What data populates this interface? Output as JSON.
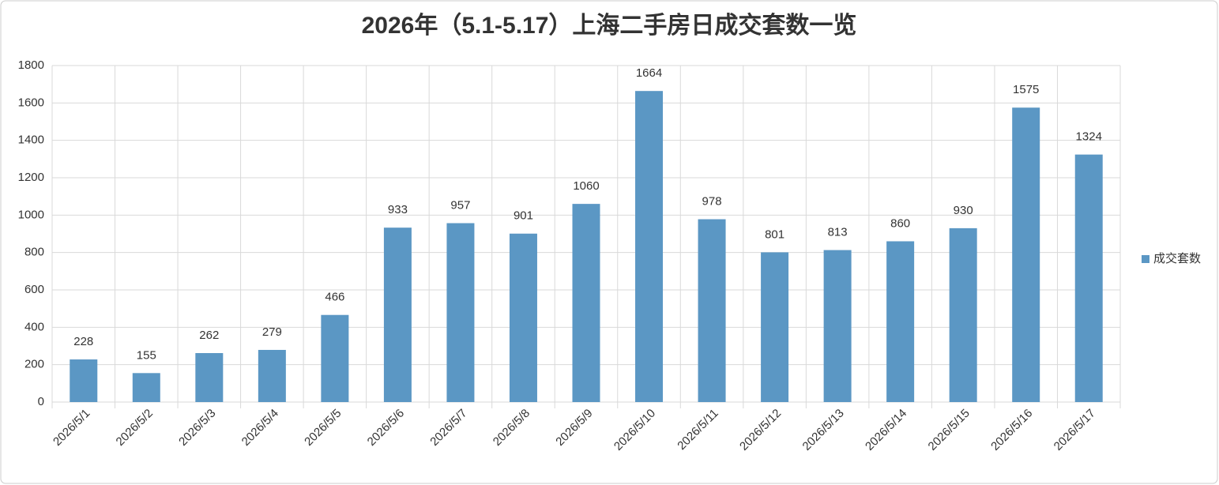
{
  "chart_data": {
    "type": "bar",
    "title": "2026年（5.1-5.17）上海二手房日成交套数一览",
    "categories": [
      "2026/5/1",
      "2026/5/2",
      "2026/5/3",
      "2026/5/4",
      "2026/5/5",
      "2026/5/6",
      "2026/5/7",
      "2026/5/8",
      "2026/5/9",
      "2026/5/10",
      "2026/5/11",
      "2026/5/12",
      "2026/5/13",
      "2026/5/14",
      "2026/5/15",
      "2026/5/16",
      "2026/5/17"
    ],
    "series": [
      {
        "name": "成交套数",
        "color": "#5b97c4",
        "values": [
          228,
          155,
          262,
          279,
          466,
          933,
          957,
          901,
          1060,
          1664,
          978,
          801,
          813,
          860,
          930,
          1575,
          1324
        ]
      }
    ],
    "ylim": [
      0,
      1800
    ],
    "yticks": [
      0,
      200,
      400,
      600,
      800,
      1000,
      1200,
      1400,
      1600,
      1800
    ],
    "grid": true,
    "legend": "right"
  }
}
